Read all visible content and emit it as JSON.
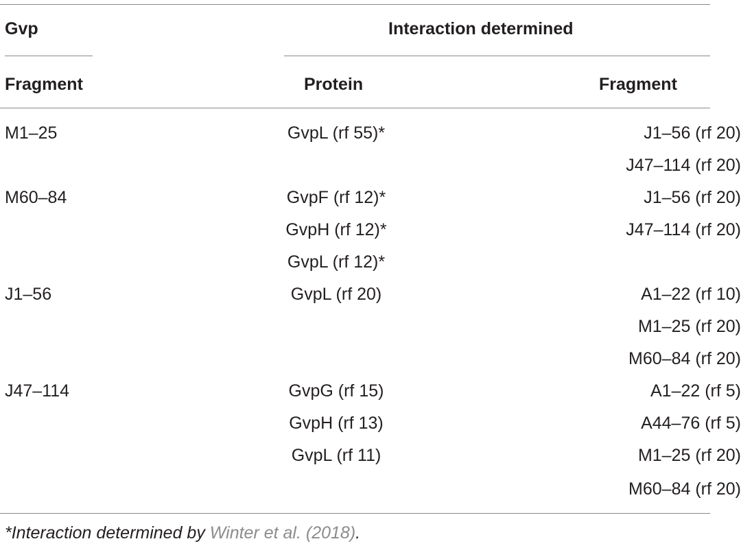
{
  "header": {
    "gvp": "Gvp",
    "interaction_determined": "Interaction determined",
    "fragment_col1": "Fragment",
    "protein": "Protein",
    "fragment_col3": "Fragment"
  },
  "rows": [
    {
      "gvp": "M1–25",
      "protein": "GvpL (rf 55)*",
      "fragment": "J1–56 (rf 20)"
    },
    {
      "gvp": "",
      "protein": "",
      "fragment": "J47–114 (rf 20)"
    },
    {
      "gvp": "M60–84",
      "protein": "GvpF (rf 12)*",
      "fragment": "J1–56 (rf 20)"
    },
    {
      "gvp": "",
      "protein": "GvpH (rf 12)*",
      "fragment": "J47–114 (rf 20)"
    },
    {
      "gvp": "",
      "protein": "GvpL (rf 12)*",
      "fragment": ""
    },
    {
      "gvp": "J1–56",
      "protein": "GvpL (rf 20)",
      "fragment": "A1–22 (rf 10)"
    },
    {
      "gvp": "",
      "protein": "",
      "fragment": "M1–25 (rf 20)"
    },
    {
      "gvp": "",
      "protein": "",
      "fragment": "M60–84 (rf 20)"
    },
    {
      "gvp": "J47–114",
      "protein": "GvpG (rf 15)",
      "fragment": "A1–22 (rf 5)"
    },
    {
      "gvp": "",
      "protein": "GvpH (rf 13)",
      "fragment": "A44–76 (rf 5)"
    },
    {
      "gvp": "",
      "protein": "GvpL (rf 11)",
      "fragment": "M1–25 (rf 20)"
    },
    {
      "gvp": "",
      "protein": "",
      "fragment": "M60–84 (rf 20)"
    }
  ],
  "footnote": {
    "prefix": "*Interaction determined by ",
    "reference": "Winter et al. (2018)",
    "suffix": "."
  }
}
